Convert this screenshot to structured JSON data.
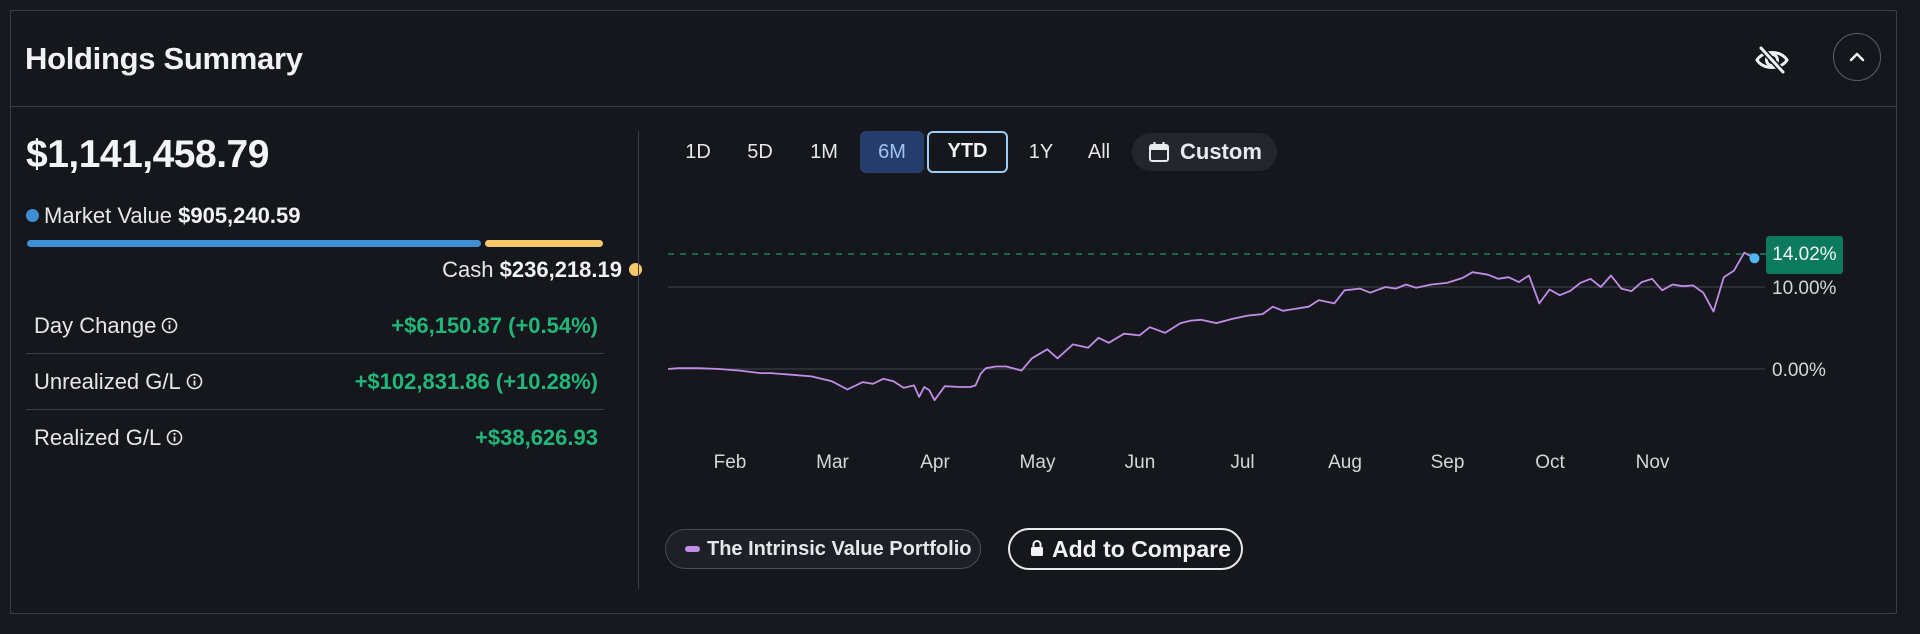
{
  "header": {
    "title": "Holdings Summary",
    "hide_icon": "eye-slash-icon",
    "collapse_icon": "chevron-up-icon"
  },
  "summary": {
    "total_value": "$1,141,458.79",
    "market_value_label": "Market Value",
    "market_value": "$905,240.59",
    "market_value_color": "#3f8fd2",
    "cash_label": "Cash",
    "cash": "$236,218.19",
    "cash_color": "#f7c96b",
    "market_value_fraction": 0.793,
    "stats": [
      {
        "label": "Day Change",
        "value": "+$6,150.87 (+0.54%)"
      },
      {
        "label": "Unrealized G/L",
        "value": "+$102,831.86 (+10.28%)"
      },
      {
        "label": "Realized G/L",
        "value": "+$38,626.93"
      }
    ],
    "gain_color": "#22b77a"
  },
  "range_tabs": [
    "1D",
    "5D",
    "1M",
    "6M",
    "YTD",
    "1Y",
    "All"
  ],
  "range_selected": "6M",
  "range_focused": "YTD",
  "custom_label": "Custom",
  "chart_data": {
    "type": "line",
    "x_ticks": [
      "Feb",
      "Mar",
      "Apr",
      "May",
      "Jun",
      "Jul",
      "Aug",
      "Sep",
      "Oct",
      "Nov"
    ],
    "y_ticks": [
      "0.00%",
      "10.00%"
    ],
    "y_tick_values": [
      0,
      10
    ],
    "current_label": "14.02%",
    "current_value": 14.02,
    "line_color": "#c28ce8",
    "series": [
      {
        "name": "The Intrinsic Value Portfolio",
        "x": [
          0,
          0.1,
          0.3,
          0.5,
          0.7,
          0.9,
          1.0,
          1.2,
          1.4,
          1.6,
          1.75,
          1.9,
          2.0,
          2.1,
          2.2,
          2.3,
          2.4,
          2.45,
          2.5,
          2.55,
          2.6,
          2.7,
          2.85,
          2.95,
          3.0,
          3.05,
          3.1,
          3.2,
          3.3,
          3.45,
          3.55,
          3.7,
          3.8,
          3.95,
          4.1,
          4.2,
          4.3,
          4.45,
          4.6,
          4.7,
          4.85,
          5.0,
          5.1,
          5.2,
          5.35,
          5.5,
          5.65,
          5.8,
          5.9,
          6.0,
          6.1,
          6.25,
          6.35,
          6.5,
          6.6,
          6.75,
          6.85,
          7.0,
          7.1,
          7.2,
          7.3,
          7.45,
          7.6,
          7.75,
          7.85,
          8.0,
          8.1,
          8.2,
          8.3,
          8.4,
          8.5,
          8.6,
          8.7,
          8.8,
          8.9,
          9.0,
          9.1,
          9.2,
          9.3,
          9.4,
          9.5,
          9.6,
          9.7,
          9.8,
          9.9,
          10.0,
          10.1,
          10.2,
          10.3,
          10.4,
          10.5,
          10.6
        ],
        "y": [
          0,
          0.1,
          0.1,
          0,
          -0.2,
          -0.5,
          -0.5,
          -0.7,
          -0.9,
          -1.5,
          -2.5,
          -1.6,
          -1.8,
          -1.2,
          -1.5,
          -2.3,
          -2.0,
          -3.4,
          -2.2,
          -2.6,
          -3.8,
          -2.1,
          -2.2,
          -2.2,
          -2.0,
          -0.6,
          0.1,
          0.3,
          0.3,
          -0.2,
          1.3,
          2.4,
          1.3,
          3.0,
          2.6,
          3.8,
          3.2,
          4.3,
          4.1,
          5.1,
          4.4,
          5.6,
          5.9,
          6.0,
          5.6,
          6.1,
          6.5,
          6.7,
          7.6,
          7.1,
          7.3,
          7.6,
          8.4,
          8.0,
          9.6,
          9.8,
          9.3,
          10.0,
          9.8,
          10.3,
          9.9,
          10.3,
          10.5,
          11.1,
          11.8,
          11.5,
          11.0,
          11.2,
          10.6,
          11.4,
          8.0,
          9.7,
          9.0,
          9.5,
          10.5,
          11.0,
          10.0,
          11.4,
          9.8,
          9.5,
          10.6,
          11.0,
          9.6,
          10.3,
          10.1,
          10.2,
          9.3,
          7.0,
          11.2,
          12.0,
          14.2,
          13.5
        ]
      }
    ]
  },
  "legend": {
    "series_name": "The Intrinsic Value Portfolio",
    "compare_label": "Add to Compare"
  }
}
